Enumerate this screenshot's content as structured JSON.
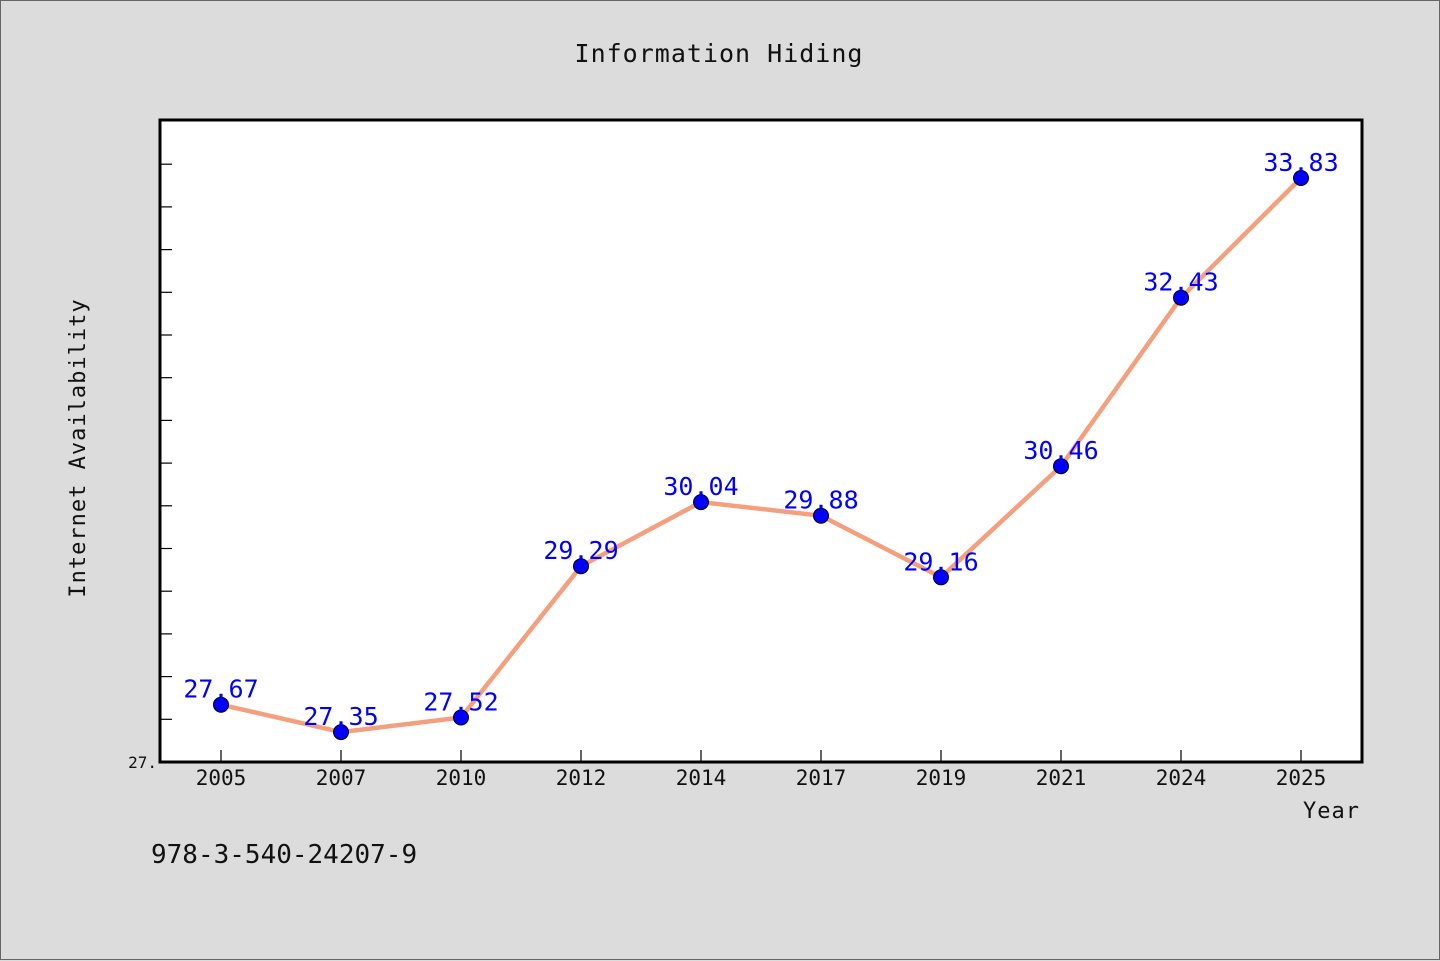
{
  "caption": "978-3-540-24207-9",
  "colors": {
    "background": "#dcdcdc",
    "plot_background": "#ffffff",
    "line": "#f4a07e",
    "marker": "#0000ff",
    "data_label": "#0000ff",
    "axis": "#000000"
  },
  "chart_data": {
    "type": "line",
    "title": "Information Hiding",
    "xlabel": "Year",
    "ylabel": "Internet Availability",
    "categories": [
      "2005",
      "2007",
      "2010",
      "2012",
      "2014",
      "2017",
      "2019",
      "2021",
      "2024",
      "2025"
    ],
    "series": [
      {
        "values": [
          27.67,
          27.35,
          27.52,
          29.29,
          30.04,
          29.88,
          29.16,
          30.46,
          32.43,
          33.83
        ],
        "data_labels": [
          "27.67",
          "27.35",
          "27.52",
          "29.29",
          "30.04",
          "29.88",
          "29.16",
          "30.46",
          "32.43",
          "33.83"
        ]
      }
    ],
    "ylim": [
      27.0,
      34.5
    ],
    "ytick_labels": [
      {
        "value": 27.0,
        "label": "27."
      }
    ],
    "grid": false,
    "legend": "none"
  }
}
